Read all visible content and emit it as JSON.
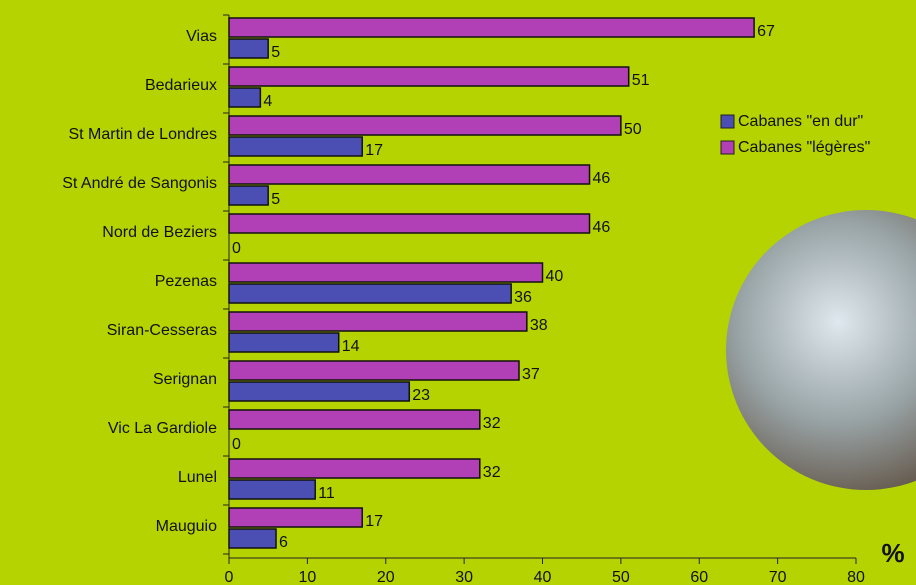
{
  "chart_data": {
    "type": "bar",
    "orientation": "horizontal",
    "categories": [
      "Vias",
      "Bedarieux",
      "St Martin de Londres",
      "St André de Sangonis",
      "Nord de Beziers",
      "Pezenas",
      "Siran-Cesseras",
      "Serignan",
      "Vic La Gardiole",
      "Lunel",
      "Mauguio"
    ],
    "series": [
      {
        "name": "Cabanes \"en dur\"",
        "color": "#4b4fb3",
        "values": [
          5,
          4,
          17,
          5,
          0,
          36,
          14,
          23,
          0,
          11,
          6
        ]
      },
      {
        "name": "Cabanes \"légères\"",
        "color": "#b13fb5",
        "values": [
          67,
          51,
          50,
          46,
          46,
          40,
          38,
          37,
          32,
          32,
          17
        ]
      }
    ],
    "x_label": "%",
    "xlim": [
      0,
      80
    ],
    "xticks": [
      0,
      10,
      20,
      30,
      40,
      50,
      60,
      70,
      80
    ],
    "legend": "right"
  }
}
